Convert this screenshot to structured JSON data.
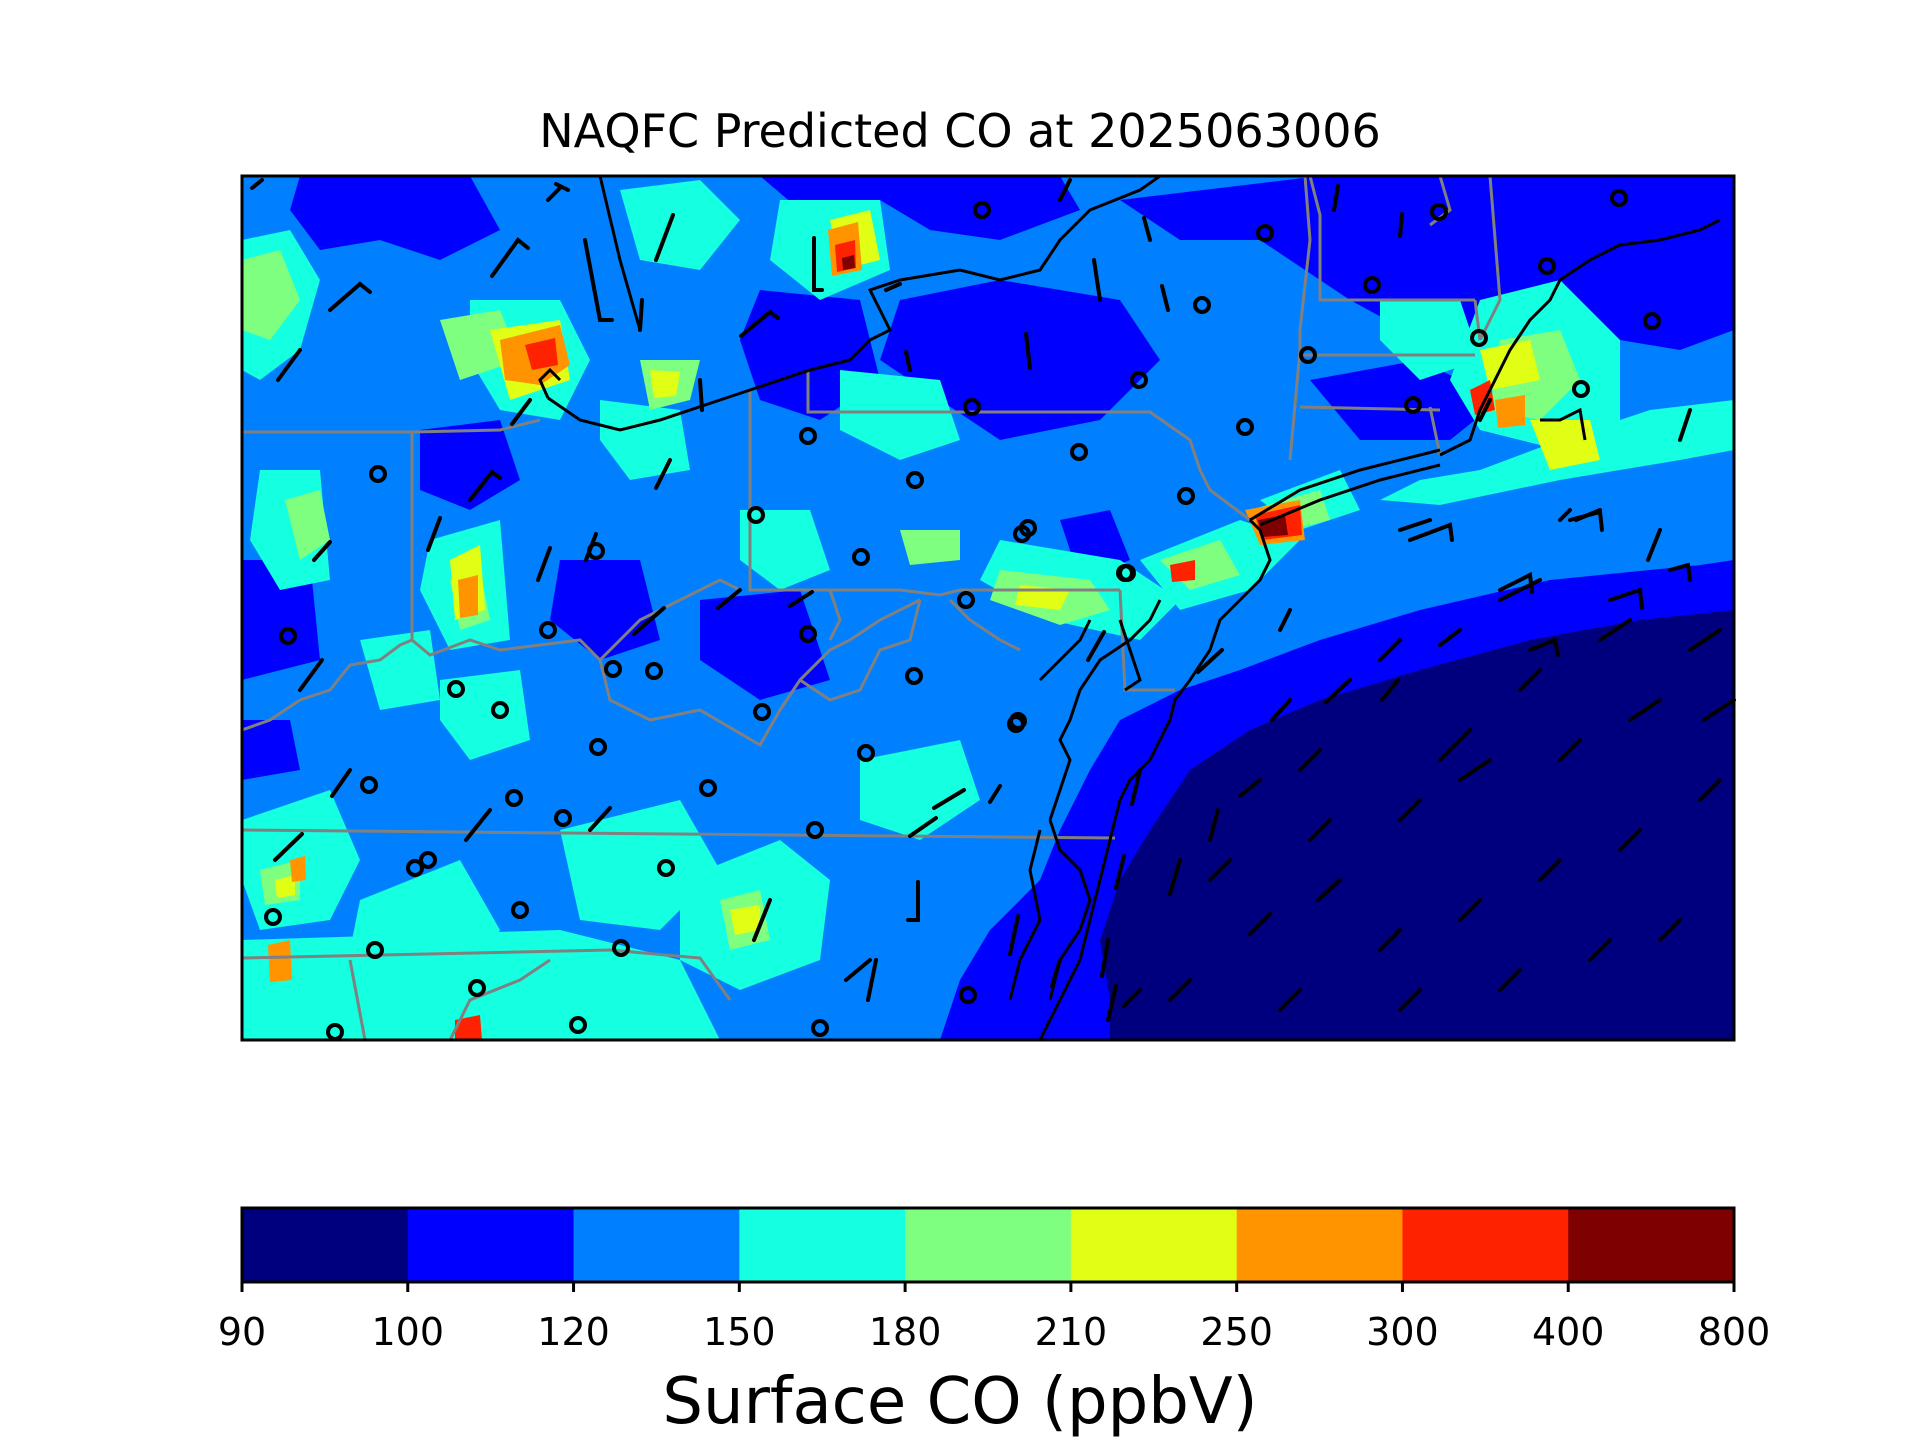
{
  "figure": {
    "title": "NAQFC Predicted CO at 2025063006"
  },
  "colorbar": {
    "label": "Surface CO (ppbV)",
    "ticks": [
      "90",
      "100",
      "120",
      "150",
      "180",
      "210",
      "250",
      "300",
      "400",
      "800"
    ],
    "colors": [
      "#00007f",
      "#0000ff",
      "#0080ff",
      "#15ffe1",
      "#7fff7f",
      "#e1ff15",
      "#ff9400",
      "#ff2200",
      "#7f0000"
    ]
  },
  "map": {
    "background_levels": "90-100 ppbV over Atlantic, 120-150 ppbV inland, hotspot up to 300-400 ppbV near New York City",
    "colors": {
      "ocean_low": "#00007f",
      "ocean_mid": "#0000ff",
      "land_base": "#0080ff",
      "moderate": "#15ffe1",
      "elevated": "#7fff7f",
      "high": "#e1ff15",
      "very_high": "#ff9400",
      "extreme": "#ff2200",
      "max": "#7f0000",
      "state_border": "#808080",
      "coastline": "#000000"
    }
  }
}
